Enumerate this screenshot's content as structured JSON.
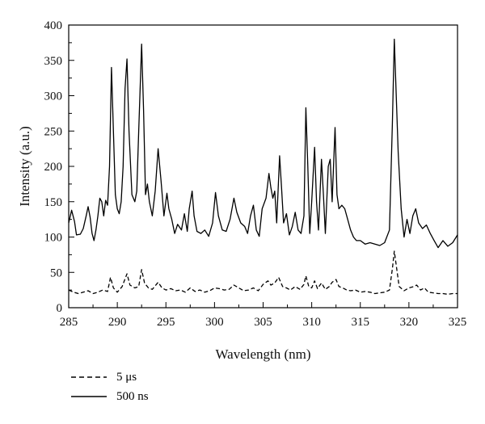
{
  "chart_data": {
    "type": "line",
    "xlabel": "Wavelength (nm)",
    "ylabel": "Intensity (a.u.)",
    "xlim": [
      285,
      325
    ],
    "ylim": [
      0,
      400
    ],
    "xticks": [
      285,
      290,
      295,
      300,
      305,
      310,
      315,
      320,
      325
    ],
    "yticks": [
      0,
      50,
      100,
      150,
      200,
      250,
      300,
      350,
      400
    ],
    "grid": false,
    "legend_position": "bottom-left, below plot",
    "series": [
      {
        "name": "500 ns",
        "style": "solid",
        "color": "#000000",
        "points": [
          [
            285.0,
            120
          ],
          [
            285.3,
            138
          ],
          [
            285.6,
            122
          ],
          [
            285.8,
            103
          ],
          [
            286.2,
            104
          ],
          [
            286.5,
            112
          ],
          [
            286.8,
            130
          ],
          [
            287.0,
            143
          ],
          [
            287.2,
            128
          ],
          [
            287.4,
            105
          ],
          [
            287.6,
            95
          ],
          [
            287.8,
            110
          ],
          [
            288.0,
            130
          ],
          [
            288.2,
            155
          ],
          [
            288.4,
            150
          ],
          [
            288.6,
            130
          ],
          [
            288.8,
            152
          ],
          [
            289.0,
            145
          ],
          [
            289.2,
            200
          ],
          [
            289.4,
            340
          ],
          [
            289.6,
            250
          ],
          [
            289.8,
            160
          ],
          [
            290.0,
            140
          ],
          [
            290.2,
            133
          ],
          [
            290.4,
            150
          ],
          [
            290.6,
            200
          ],
          [
            290.8,
            310
          ],
          [
            291.0,
            352
          ],
          [
            291.2,
            250
          ],
          [
            291.5,
            160
          ],
          [
            291.8,
            150
          ],
          [
            292.0,
            165
          ],
          [
            292.2,
            250
          ],
          [
            292.5,
            373
          ],
          [
            292.7,
            280
          ],
          [
            292.9,
            160
          ],
          [
            293.1,
            175
          ],
          [
            293.3,
            150
          ],
          [
            293.6,
            130
          ],
          [
            293.9,
            165
          ],
          [
            294.2,
            225
          ],
          [
            294.5,
            180
          ],
          [
            294.8,
            130
          ],
          [
            295.1,
            162
          ],
          [
            295.3,
            140
          ],
          [
            295.6,
            125
          ],
          [
            295.9,
            105
          ],
          [
            296.2,
            118
          ],
          [
            296.6,
            110
          ],
          [
            296.9,
            133
          ],
          [
            297.2,
            108
          ],
          [
            297.4,
            140
          ],
          [
            297.7,
            165
          ],
          [
            297.9,
            130
          ],
          [
            298.2,
            108
          ],
          [
            298.6,
            105
          ],
          [
            299.0,
            110
          ],
          [
            299.4,
            101
          ],
          [
            299.8,
            120
          ],
          [
            300.1,
            163
          ],
          [
            300.4,
            130
          ],
          [
            300.8,
            110
          ],
          [
            301.2,
            108
          ],
          [
            301.6,
            125
          ],
          [
            302.0,
            155
          ],
          [
            302.3,
            135
          ],
          [
            302.7,
            120
          ],
          [
            303.1,
            115
          ],
          [
            303.4,
            105
          ],
          [
            303.7,
            130
          ],
          [
            304.0,
            145
          ],
          [
            304.3,
            110
          ],
          [
            304.6,
            101
          ],
          [
            304.9,
            140
          ],
          [
            305.3,
            155
          ],
          [
            305.6,
            190
          ],
          [
            305.8,
            170
          ],
          [
            306.0,
            155
          ],
          [
            306.2,
            165
          ],
          [
            306.4,
            120
          ],
          [
            306.7,
            215
          ],
          [
            306.9,
            170
          ],
          [
            307.1,
            120
          ],
          [
            307.4,
            133
          ],
          [
            307.7,
            103
          ],
          [
            308.0,
            115
          ],
          [
            308.3,
            135
          ],
          [
            308.6,
            110
          ],
          [
            308.9,
            105
          ],
          [
            309.2,
            130
          ],
          [
            309.4,
            283
          ],
          [
            309.6,
            200
          ],
          [
            309.8,
            105
          ],
          [
            310.0,
            150
          ],
          [
            310.3,
            227
          ],
          [
            310.5,
            150
          ],
          [
            310.7,
            110
          ],
          [
            311.0,
            210
          ],
          [
            311.2,
            160
          ],
          [
            311.4,
            105
          ],
          [
            311.7,
            200
          ],
          [
            311.9,
            210
          ],
          [
            312.1,
            150
          ],
          [
            312.4,
            255
          ],
          [
            312.6,
            160
          ],
          [
            312.8,
            140
          ],
          [
            313.1,
            145
          ],
          [
            313.4,
            140
          ],
          [
            313.7,
            125
          ],
          [
            314.0,
            110
          ],
          [
            314.3,
            100
          ],
          [
            314.6,
            95
          ],
          [
            315.0,
            95
          ],
          [
            315.5,
            90
          ],
          [
            316.0,
            92
          ],
          [
            316.5,
            90
          ],
          [
            317.0,
            88
          ],
          [
            317.5,
            92
          ],
          [
            318.0,
            110
          ],
          [
            318.3,
            260
          ],
          [
            318.5,
            380
          ],
          [
            318.7,
            300
          ],
          [
            318.9,
            220
          ],
          [
            319.2,
            140
          ],
          [
            319.5,
            100
          ],
          [
            319.8,
            125
          ],
          [
            320.1,
            105
          ],
          [
            320.4,
            130
          ],
          [
            320.7,
            140
          ],
          [
            321.0,
            120
          ],
          [
            321.4,
            112
          ],
          [
            321.8,
            117
          ],
          [
            322.2,
            105
          ],
          [
            322.6,
            95
          ],
          [
            323.0,
            85
          ],
          [
            323.5,
            95
          ],
          [
            324.0,
            87
          ],
          [
            324.5,
            92
          ],
          [
            325.0,
            103
          ]
        ]
      },
      {
        "name": "5 μs",
        "style": "dashed",
        "color": "#000000",
        "points": [
          [
            285.0,
            25
          ],
          [
            285.5,
            22
          ],
          [
            286.0,
            20
          ],
          [
            286.5,
            22
          ],
          [
            287.0,
            24
          ],
          [
            287.5,
            20
          ],
          [
            288.0,
            22
          ],
          [
            288.5,
            25
          ],
          [
            289.0,
            23
          ],
          [
            289.3,
            43
          ],
          [
            289.6,
            28
          ],
          [
            290.0,
            22
          ],
          [
            290.5,
            30
          ],
          [
            291.0,
            48
          ],
          [
            291.3,
            32
          ],
          [
            291.8,
            28
          ],
          [
            292.2,
            30
          ],
          [
            292.5,
            54
          ],
          [
            292.8,
            35
          ],
          [
            293.2,
            28
          ],
          [
            293.6,
            26
          ],
          [
            294.2,
            36
          ],
          [
            294.6,
            28
          ],
          [
            295.0,
            25
          ],
          [
            295.5,
            27
          ],
          [
            296.0,
            24
          ],
          [
            296.5,
            25
          ],
          [
            297.0,
            22
          ],
          [
            297.5,
            28
          ],
          [
            298.0,
            23
          ],
          [
            298.5,
            25
          ],
          [
            299.0,
            22
          ],
          [
            299.5,
            24
          ],
          [
            300.0,
            28
          ],
          [
            300.5,
            27
          ],
          [
            301.0,
            25
          ],
          [
            301.5,
            26
          ],
          [
            302.0,
            32
          ],
          [
            302.5,
            28
          ],
          [
            303.0,
            24
          ],
          [
            303.5,
            25
          ],
          [
            304.0,
            28
          ],
          [
            304.5,
            24
          ],
          [
            305.0,
            33
          ],
          [
            305.5,
            38
          ],
          [
            305.8,
            32
          ],
          [
            306.2,
            35
          ],
          [
            306.6,
            43
          ],
          [
            307.0,
            30
          ],
          [
            307.4,
            28
          ],
          [
            307.8,
            25
          ],
          [
            308.3,
            30
          ],
          [
            308.8,
            26
          ],
          [
            309.2,
            33
          ],
          [
            309.4,
            45
          ],
          [
            309.7,
            30
          ],
          [
            310.0,
            28
          ],
          [
            310.3,
            38
          ],
          [
            310.6,
            27
          ],
          [
            311.0,
            35
          ],
          [
            311.4,
            26
          ],
          [
            311.8,
            30
          ],
          [
            312.1,
            36
          ],
          [
            312.5,
            40
          ],
          [
            312.8,
            30
          ],
          [
            313.2,
            28
          ],
          [
            313.6,
            25
          ],
          [
            314.0,
            24
          ],
          [
            314.5,
            25
          ],
          [
            315.0,
            22
          ],
          [
            315.5,
            23
          ],
          [
            316.0,
            22
          ],
          [
            316.5,
            20
          ],
          [
            317.0,
            21
          ],
          [
            317.5,
            22
          ],
          [
            318.0,
            25
          ],
          [
            318.3,
            55
          ],
          [
            318.5,
            80
          ],
          [
            318.7,
            60
          ],
          [
            319.0,
            30
          ],
          [
            319.5,
            24
          ],
          [
            320.0,
            28
          ],
          [
            320.5,
            30
          ],
          [
            320.8,
            32
          ],
          [
            321.2,
            25
          ],
          [
            321.6,
            28
          ],
          [
            322.0,
            22
          ],
          [
            322.5,
            21
          ],
          [
            323.0,
            20
          ],
          [
            323.5,
            20
          ],
          [
            324.0,
            19
          ],
          [
            324.5,
            20
          ],
          [
            325.0,
            20
          ]
        ]
      }
    ]
  },
  "legend": {
    "items": [
      {
        "label": "5 μs",
        "style": "dashed"
      },
      {
        "label": "500 ns",
        "style": "solid"
      }
    ]
  }
}
